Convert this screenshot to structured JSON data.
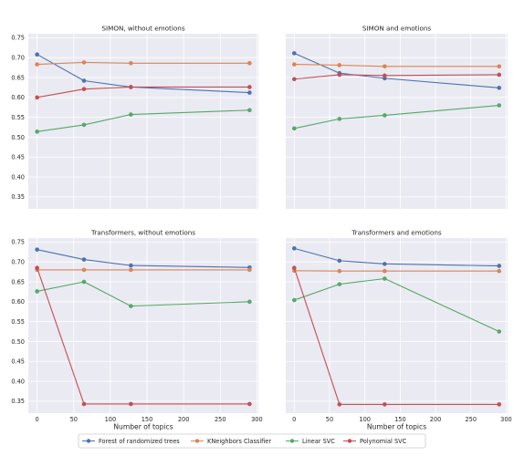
{
  "colors": {
    "plot_bg": "#eaeaf2",
    "grid": "#ffffff",
    "series": [
      "#4c72b0",
      "#dd8452",
      "#55a868",
      "#c44e52"
    ]
  },
  "legend_labels": [
    "Forest of randomized trees",
    "KNeighbors Classifier",
    "Linear SVC",
    "Polynomial SVC"
  ],
  "chart_data": [
    {
      "type": "line",
      "title": "SIMON, without emotions",
      "xlabel": "",
      "ylabel": "",
      "x": [
        0,
        64,
        128,
        290
      ],
      "xticks": [],
      "yticks": [
        "0.35",
        "0.40",
        "0.45",
        "0.50",
        "0.55",
        "0.60",
        "0.65",
        "0.70",
        "0.75"
      ],
      "xlim": [
        -12,
        302
      ],
      "ylim": [
        0.32,
        0.76
      ],
      "grid": true,
      "series": [
        {
          "name": "Forest of randomized trees",
          "values": [
            0.708,
            0.642,
            0.626,
            0.612
          ]
        },
        {
          "name": "KNeighbors Classifier",
          "values": [
            0.683,
            0.688,
            0.686,
            0.686
          ]
        },
        {
          "name": "Linear SVC",
          "values": [
            0.514,
            0.531,
            0.557,
            0.568
          ]
        },
        {
          "name": "Polynomial SVC",
          "values": [
            0.6,
            0.621,
            0.626,
            0.626
          ]
        }
      ]
    },
    {
      "type": "line",
      "title": "SIMON and emotions",
      "xlabel": "",
      "ylabel": "",
      "x": [
        0,
        64,
        128,
        290
      ],
      "xticks": [],
      "yticks": [],
      "xlim": [
        -12,
        302
      ],
      "ylim": [
        0.32,
        0.76
      ],
      "grid": true,
      "series": [
        {
          "name": "Forest of randomized trees",
          "values": [
            0.711,
            0.661,
            0.648,
            0.624
          ]
        },
        {
          "name": "KNeighbors Classifier",
          "values": [
            0.683,
            0.681,
            0.678,
            0.678
          ]
        },
        {
          "name": "Linear SVC",
          "values": [
            0.522,
            0.546,
            0.555,
            0.58
          ]
        },
        {
          "name": "Polynomial SVC",
          "values": [
            0.646,
            0.657,
            0.655,
            0.657
          ]
        }
      ]
    },
    {
      "type": "line",
      "title": "Transformers, without emotions",
      "xlabel": "Number of topics",
      "ylabel": "",
      "x": [
        0,
        64,
        128,
        290
      ],
      "xticks": [
        "0",
        "50",
        "100",
        "150",
        "200",
        "250",
        "300"
      ],
      "yticks": [
        "0.35",
        "0.40",
        "0.45",
        "0.50",
        "0.55",
        "0.60",
        "0.65",
        "0.70",
        "0.75"
      ],
      "xlim": [
        -12,
        302
      ],
      "ylim": [
        0.32,
        0.76
      ],
      "grid": true,
      "series": [
        {
          "name": "Forest of randomized trees",
          "values": [
            0.731,
            0.706,
            0.691,
            0.686
          ]
        },
        {
          "name": "KNeighbors Classifier",
          "values": [
            0.68,
            0.68,
            0.68,
            0.68
          ]
        },
        {
          "name": "Linear SVC",
          "values": [
            0.626,
            0.65,
            0.589,
            0.6
          ]
        },
        {
          "name": "Polynomial SVC",
          "values": [
            0.685,
            0.343,
            0.343,
            0.343
          ]
        }
      ]
    },
    {
      "type": "line",
      "title": "Transformers and emotions",
      "xlabel": "Number of topics",
      "ylabel": "",
      "x": [
        0,
        64,
        128,
        290
      ],
      "xticks": [
        "0",
        "50",
        "100",
        "150",
        "200",
        "250",
        "300"
      ],
      "yticks": [],
      "xlim": [
        -12,
        302
      ],
      "ylim": [
        0.32,
        0.76
      ],
      "grid": true,
      "series": [
        {
          "name": "Forest of randomized trees",
          "values": [
            0.734,
            0.703,
            0.695,
            0.69
          ]
        },
        {
          "name": "KNeighbors Classifier",
          "values": [
            0.678,
            0.677,
            0.677,
            0.677
          ]
        },
        {
          "name": "Linear SVC",
          "values": [
            0.604,
            0.644,
            0.658,
            0.525
          ]
        },
        {
          "name": "Polynomial SVC",
          "values": [
            0.685,
            0.342,
            0.342,
            0.342
          ]
        }
      ]
    }
  ]
}
